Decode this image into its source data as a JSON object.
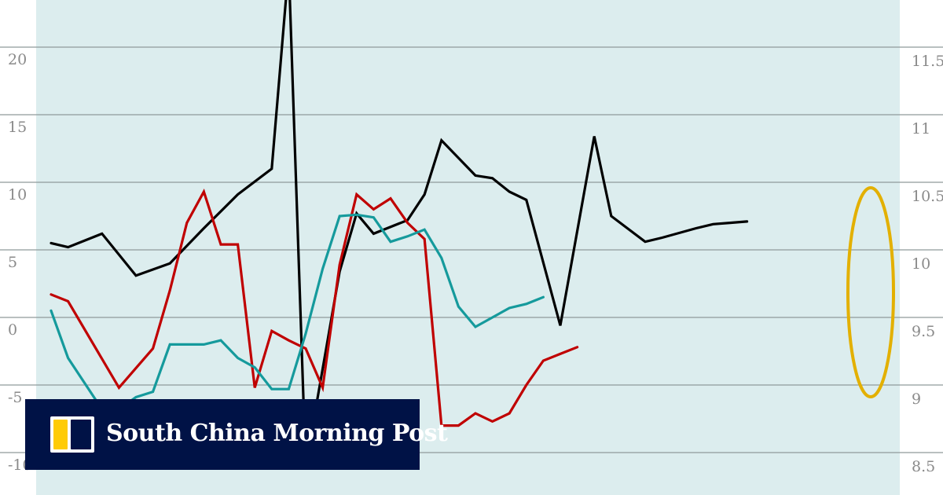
{
  "chart_data": {
    "type": "line",
    "x": [
      1,
      2,
      3,
      4,
      5,
      6,
      7,
      8,
      9,
      10,
      11,
      12,
      13,
      14,
      15,
      16,
      17,
      18,
      19,
      20,
      21,
      22,
      23,
      24,
      25,
      26,
      27,
      28,
      29,
      30,
      31,
      32,
      33,
      34,
      35,
      36,
      37,
      38,
      39,
      40,
      41,
      42
    ],
    "left_axis": {
      "ticks": [
        "20",
        "15",
        "10",
        "5",
        "0",
        "-5",
        "-10"
      ],
      "ylim": [
        -11.8,
        23.5
      ]
    },
    "right_axis": {
      "ticks": [
        "11.5",
        "11",
        "10.5",
        "10",
        "9.5",
        "9",
        "8.5"
      ],
      "ylim": [
        8.25,
        12.0
      ]
    },
    "grid": true,
    "background_band": "#dcedee",
    "series": [
      {
        "color": "#000000",
        "axis": "left",
        "x": [
          1,
          2,
          4,
          6,
          8,
          10,
          12,
          14,
          15,
          16,
          18,
          19,
          20,
          22,
          23,
          24,
          26,
          27,
          28,
          29,
          31,
          33,
          34,
          36,
          37,
          39,
          40,
          41,
          42
        ],
        "values": [
          5.5,
          5.2,
          6.2,
          3.1,
          4.0,
          6.6,
          9.1,
          11.0,
          26.0,
          -11.0,
          3.4,
          7.7,
          6.2,
          7.2,
          9.1,
          13.1,
          10.5,
          10.3,
          9.3,
          8.7,
          -0.6,
          13.4,
          7.5,
          5.6,
          5.9,
          6.6,
          6.9,
          7.0,
          7.1
        ]
      },
      {
        "color": "#c00000",
        "axis": "right",
        "x": [
          1,
          2,
          5,
          6,
          8,
          10,
          12,
          14,
          15,
          16,
          18,
          19,
          20,
          22,
          23,
          24,
          26,
          27,
          28,
          29,
          31,
          33,
          34,
          36,
          37,
          39,
          40,
          41,
          42
        ],
        "values": [
          9.67,
          9.62,
          8.98,
          9.27,
          9.7,
          10.2,
          10.43,
          10.04,
          10.04,
          8.98,
          9.4,
          9.33,
          9.27,
          8.98,
          9.89,
          10.41,
          10.3,
          10.38,
          10.2,
          10.08,
          8.7,
          8.7,
          8.79,
          8.73,
          8.79,
          9.0,
          9.18,
          9.23,
          9.28
        ],
        "x_override": [
          1,
          2,
          5,
          7,
          8,
          9,
          10,
          11,
          12,
          13,
          14,
          15,
          16,
          17,
          18,
          19,
          20,
          21,
          22,
          23,
          24,
          25,
          26,
          27,
          28,
          29,
          30,
          31,
          32
        ]
      },
      {
        "color": "#159a9c",
        "axis": "right",
        "x": [
          1,
          2,
          4,
          5,
          6,
          7,
          8,
          9,
          10,
          11,
          12,
          13,
          14,
          15,
          16,
          17,
          18,
          19,
          20,
          21,
          22,
          23,
          24,
          25,
          26,
          27,
          28,
          29,
          30
        ],
        "values": [
          9.55,
          9.2,
          8.82,
          8.82,
          8.91,
          8.95,
          9.3,
          9.3,
          9.3,
          9.33,
          9.2,
          9.13,
          8.97,
          8.97,
          9.38,
          9.86,
          10.25,
          10.26,
          10.24,
          10.06,
          10.1,
          10.15,
          9.94,
          9.58,
          9.43,
          9.5,
          9.57,
          9.6,
          9.65
        ]
      }
    ]
  },
  "highlight": {
    "shape": "ellipse",
    "color": "#e3b000"
  },
  "logo": {
    "text": "South China Morning Post"
  }
}
